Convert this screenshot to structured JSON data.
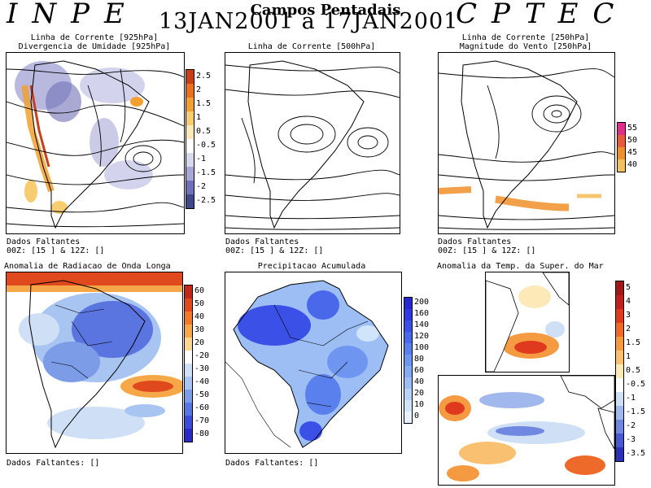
{
  "header": {
    "left_logo": "INPE",
    "right_logo": "CPTEC",
    "subtitle": "Campos Pentadais",
    "date_range": "13JAN2001 a 17JAN2001"
  },
  "panels": {
    "p925": {
      "title_line1": "Linha de Corrente [925hPa]",
      "title_line2": "Divergencia de Umidade [925hPa]",
      "note_line1": "Dados Faltantes",
      "note_line2": "00Z: [15 ] & 12Z: []",
      "colorbar": {
        "labels": [
          "2.5",
          "2",
          "1.5",
          "1",
          "0.5",
          "-0.5",
          "-1",
          "-1.5",
          "-2",
          "-2.5"
        ],
        "colors": [
          "#c8401a",
          "#e8701e",
          "#f2a030",
          "#f8cc70",
          "#fde8b8",
          "#ffffff",
          "#d8d8ee",
          "#a8a8d8",
          "#7070b8",
          "#404888"
        ]
      }
    },
    "p500": {
      "title_line1": "Linha de Corrente [500hPa]",
      "note_line1": "Dados Faltantes",
      "note_line2": "00Z: [15 ] & 12Z: []"
    },
    "p250": {
      "title_line1": "Linha de Corrente [250hPa]",
      "title_line2": "Magnitude do Vento [250hPa]",
      "note_line1": "Dados Faltantes",
      "note_line2": "00Z: [15 ] & 12Z: []",
      "colorbar": {
        "labels": [
          "55",
          "50",
          "45",
          "40"
        ],
        "colors": [
          "#e0308a",
          "#e85a3a",
          "#f0902a",
          "#f2c060"
        ]
      }
    },
    "olr": {
      "title_line1": "Anomalia de Radiacao de Onda Longa",
      "note_line1": "Dados Faltantes: []",
      "colorbar": {
        "labels": [
          "60",
          "50",
          "40",
          "30",
          "20",
          "-20",
          "-30",
          "-40",
          "-50",
          "-60",
          "-70",
          "-80"
        ],
        "colors": [
          "#c0281a",
          "#e0481e",
          "#f07a2a",
          "#f6a848",
          "#fbd890",
          "#ffffff",
          "#cfe0f6",
          "#a8c4f0",
          "#7c9ce8",
          "#5a74e0",
          "#3a4cd8",
          "#2a2ac8"
        ]
      }
    },
    "precip": {
      "title_line1": "Precipitacao Acumulada",
      "note_line1": "Dados Faltantes: []",
      "colorbar": {
        "labels": [
          "200",
          "160",
          "140",
          "120",
          "100",
          "80",
          "60",
          "40",
          "20",
          "10",
          "0"
        ],
        "colors": [
          "#2828d0",
          "#3038e0",
          "#3a50e6",
          "#4a68ea",
          "#5a80ee",
          "#6e96f0",
          "#84aaf2",
          "#9cbef4",
          "#b6d2f6",
          "#d0e4fa",
          "#e8f2fc"
        ]
      }
    },
    "sst": {
      "title_line1": "Anomalia da Temp. da Super. do Mar",
      "colorbar": {
        "labels": [
          "5",
          "4",
          "3",
          "2",
          "1.5",
          "1",
          "0.5",
          "-0.5",
          "-1",
          "-1.5",
          "-2",
          "-3",
          "-3.5"
        ],
        "colors": [
          "#a01818",
          "#c02020",
          "#e03a1e",
          "#ee6a2a",
          "#f49a40",
          "#f8c070",
          "#fde8b8",
          "#ffffff",
          "#cfe0f6",
          "#a0b8ec",
          "#7088e0",
          "#4858d0",
          "#2a30b8"
        ]
      }
    }
  }
}
